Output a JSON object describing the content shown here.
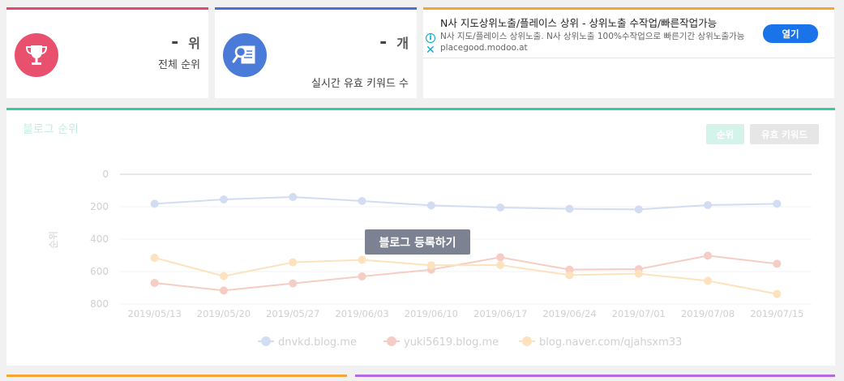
{
  "stats": {
    "rank": {
      "value": "-",
      "unit": "위",
      "label": "전체 순위",
      "icon": "trophy-icon"
    },
    "keywords": {
      "value": "-",
      "unit": "개",
      "label": "실시간 유효 키워드 수",
      "icon": "keyword-search-icon"
    }
  },
  "ad": {
    "title": "N사 지도상위노출/플레이스 상위 - 상위노출 수작업/빠른작업가능",
    "description": "N사 지도/플레이스 상위노출. N사 상위노출 100%수작업으로 빠른기간 상위노출가능 placegood.modoo.at",
    "button_label": "열기",
    "info_icon": "info-icon",
    "close_icon": "close-icon"
  },
  "blog_panel": {
    "title": "블로그 순위",
    "toggle_rank": "순위",
    "toggle_keywords": "유효 키워드",
    "register_button": "블로그 등록하기",
    "accent_color": "#3ec9a6"
  },
  "chart_data": {
    "type": "line",
    "ylabel": "순위",
    "xlabel": "",
    "y_reversed": true,
    "ylim": [
      0,
      800
    ],
    "y_ticks": [
      0,
      200,
      400,
      600,
      800
    ],
    "categories": [
      "2019/05/13",
      "2019/05/20",
      "2019/05/27",
      "2019/06/03",
      "2019/06/10",
      "2019/06/17",
      "2019/06/24",
      "2019/07/01",
      "2019/07/08",
      "2019/07/15"
    ],
    "legend_position": "bottom",
    "series": [
      {
        "name": "dnvkd.blog.me",
        "color": "#d3ddf2",
        "values": [
          182,
          155,
          140,
          165,
          192,
          205,
          213,
          217,
          190,
          182
        ]
      },
      {
        "name": "yuki5619.blog.me",
        "color": "#f6cdc4",
        "values": [
          670,
          717,
          673,
          630,
          588,
          512,
          588,
          585,
          502,
          552
        ]
      },
      {
        "name": "blog.naver.com/qjahsxm33",
        "color": "#fce2bd",
        "values": [
          515,
          628,
          543,
          528,
          561,
          560,
          622,
          613,
          657,
          738
        ]
      }
    ]
  }
}
